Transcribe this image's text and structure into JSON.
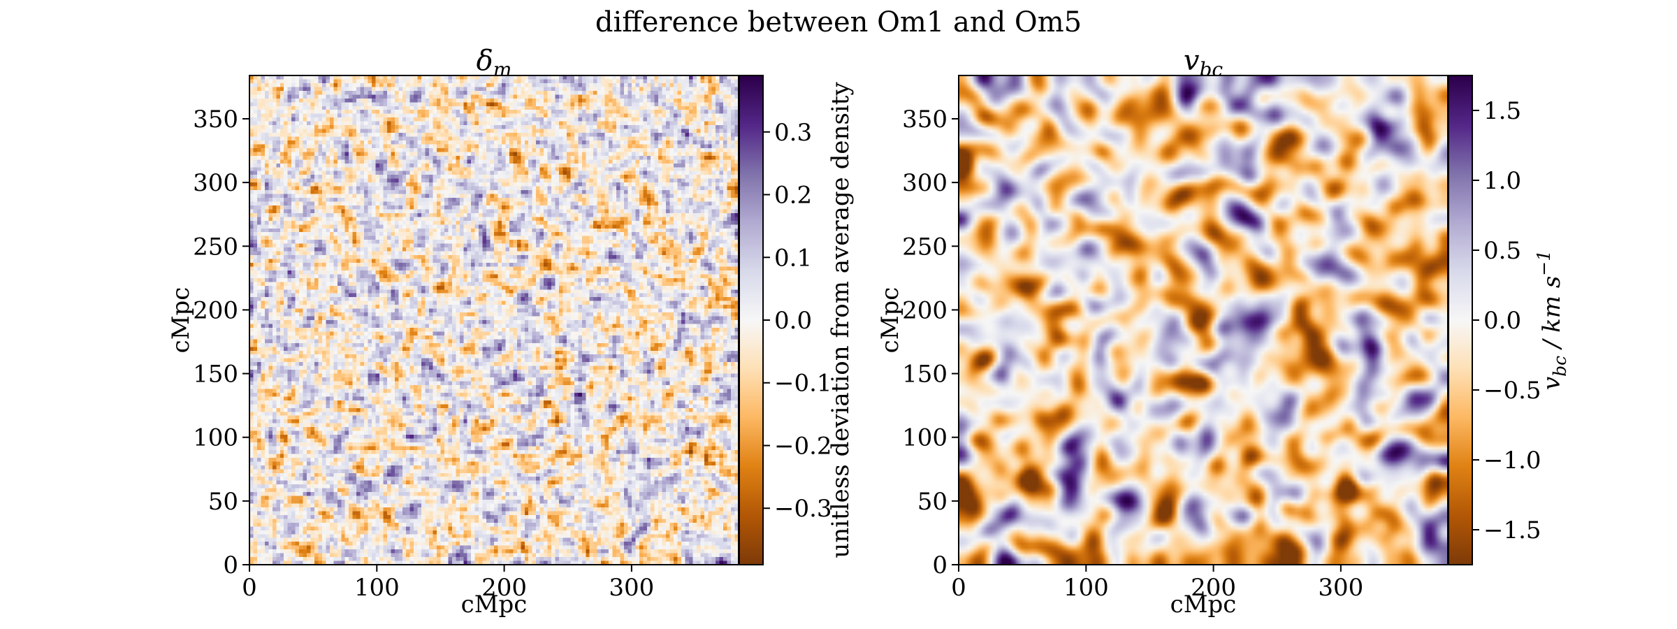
{
  "suptitle": "difference between Om1 and Om5",
  "chart_data": [
    {
      "type": "heatmap",
      "title": "δ_m",
      "title_main": "δ",
      "title_sub": "m",
      "xlabel": "cMpc",
      "ylabel": "cMpc",
      "xlim": [
        0,
        384
      ],
      "ylim": [
        0,
        384
      ],
      "xticks": [
        0,
        100,
        200,
        300
      ],
      "yticks": [
        0,
        50,
        100,
        150,
        200,
        250,
        300,
        350
      ],
      "grid_cells": 128,
      "field_style": "fine-grained noise",
      "colormap": "PuOr",
      "colorbar": {
        "label": "unitless deviation from average density",
        "range": [
          -0.39,
          0.39
        ],
        "ticks": [
          -0.3,
          -0.2,
          -0.1,
          0.0,
          0.1,
          0.2,
          0.3
        ],
        "tick_labels": [
          "−0.3",
          "−0.2",
          "−0.1",
          "0.0",
          "0.1",
          "0.2",
          "0.3"
        ]
      }
    },
    {
      "type": "heatmap",
      "title": "v_bc",
      "title_main": "v",
      "title_sub": "bc",
      "xlabel": "cMpc",
      "ylabel": "cMpc",
      "xlim": [
        0,
        384
      ],
      "ylim": [
        0,
        384
      ],
      "xticks": [
        0,
        100,
        200,
        300
      ],
      "yticks": [
        0,
        50,
        100,
        150,
        200,
        250,
        300,
        350
      ],
      "grid_cells": 128,
      "field_style": "smooth large-scale structure",
      "colormap": "PuOr",
      "colorbar": {
        "label": "v_bc / km s^-1",
        "label_parts": [
          "v",
          "bc",
          " / km s",
          "−1"
        ],
        "range": [
          -1.75,
          1.75
        ],
        "ticks": [
          -1.5,
          -1.0,
          -0.5,
          0.0,
          0.5,
          1.0,
          1.5
        ],
        "tick_labels": [
          "−1.5",
          "−1.0",
          "−0.5",
          "0.0",
          "0.5",
          "1.0",
          "1.5"
        ]
      }
    }
  ],
  "colors": {
    "colormap_stops": [
      "#7f3b08",
      "#b35806",
      "#e08214",
      "#fdb863",
      "#fee0b6",
      "#f7f7f7",
      "#d8daeb",
      "#b2abd2",
      "#8073ac",
      "#542788",
      "#2d004b"
    ],
    "axis": "#000000",
    "background": "#ffffff"
  }
}
